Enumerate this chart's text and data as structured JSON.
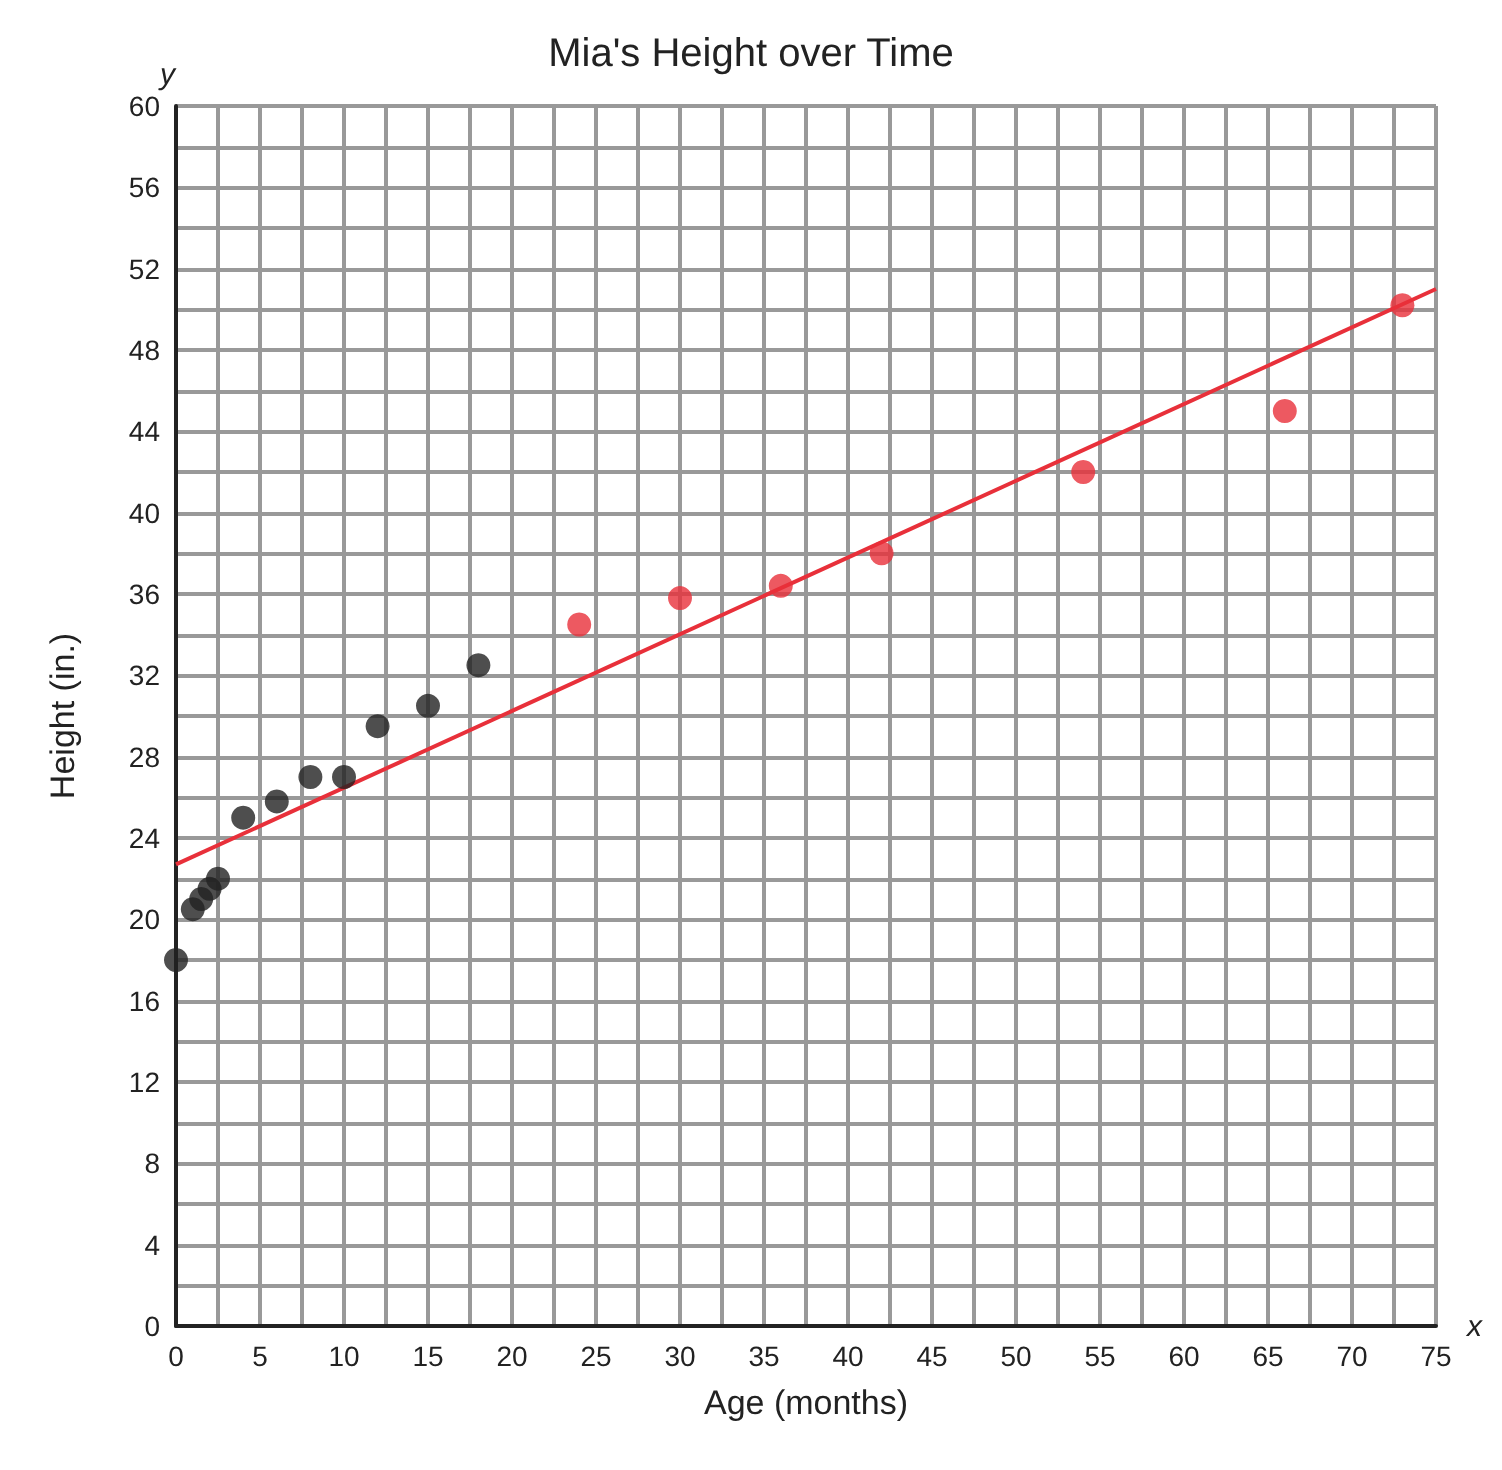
{
  "chart_data": {
    "type": "scatter",
    "title": "Mia's Height over Time",
    "xlabel": "Age (months)",
    "ylabel": "Height (in.)",
    "annotations": [
      "x",
      "y"
    ],
    "series": [
      {
        "color": "#222222",
        "x": [
          0,
          1,
          1.5,
          2,
          2.5,
          4,
          6,
          8,
          10,
          12,
          15,
          18
        ],
        "values": [
          18,
          20.5,
          21,
          21.5,
          22,
          25,
          25.8,
          27,
          27,
          29.5,
          30.5,
          32.5
        ]
      },
      {
        "color": "#e8303a",
        "x": [
          24,
          30,
          36,
          42,
          54,
          66,
          73
        ],
        "values": [
          34.5,
          35.8,
          36.4,
          38,
          42,
          45,
          50.2
        ]
      },
      {
        "type": "line",
        "color": "#e8303a",
        "marker": "none",
        "x": [
          0,
          75
        ],
        "values": [
          22.7,
          51
        ]
      }
    ],
    "xlim": [
      0,
      75
    ],
    "xticks": [
      0,
      5,
      10,
      15,
      20,
      25,
      30,
      35,
      40,
      45,
      50,
      55,
      60,
      65,
      70,
      75
    ],
    "ylim": [
      0,
      60
    ],
    "yticks": [
      0,
      4,
      8,
      12,
      16,
      20,
      24,
      28,
      32,
      36,
      40,
      44,
      48,
      52,
      56,
      60
    ],
    "grid": true,
    "marker": "circle"
  }
}
